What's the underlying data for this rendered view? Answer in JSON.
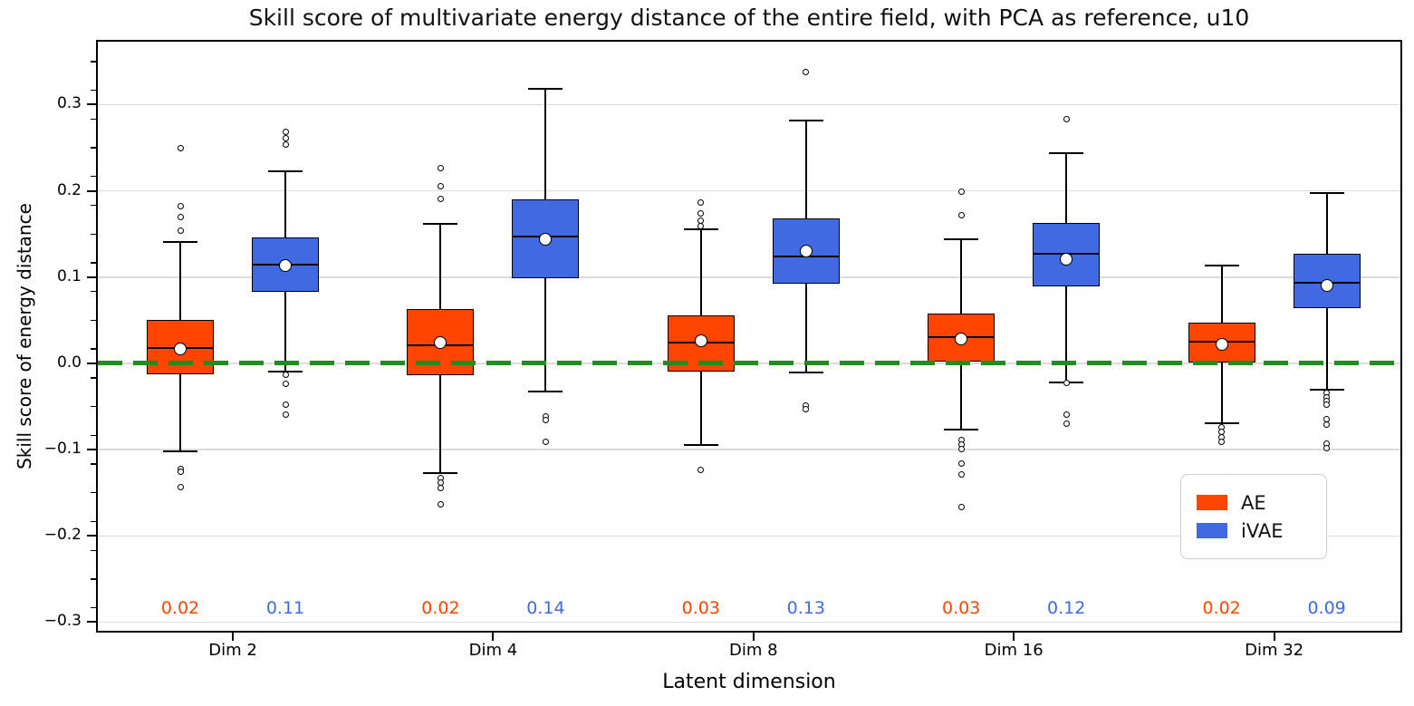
{
  "chart_data": {
    "type": "boxplot",
    "title": "Skill score of multivariate energy distance of the entire field, with PCA as reference, u10",
    "xlabel": "Latent dimension",
    "ylabel": "Skill score of energy distance",
    "ylim": [
      -0.31,
      0.373
    ],
    "yticks": [
      0.3,
      0.2,
      0.1,
      0.0,
      -0.1,
      -0.2,
      -0.3
    ],
    "ytick_labels": [
      "0.3",
      "0.2",
      "0.1",
      "0.0",
      "−0.1",
      "−0.2",
      "−0.3"
    ],
    "categories": [
      "Dim 2",
      "Dim 4",
      "Dim 8",
      "Dim 16",
      "Dim 32"
    ],
    "grid": "horizontal",
    "grid_color": "#dcdcdc",
    "legend_position": "lower right",
    "zero_line": {
      "value": 0.0,
      "color": "#228B22",
      "style": "dashed"
    },
    "mean_label_y": -0.285,
    "series": [
      {
        "name": "AE",
        "color": "#FF4500",
        "mean_labels": [
          "0.02",
          "0.02",
          "0.03",
          "0.03",
          "0.02"
        ],
        "boxes": [
          {
            "whislo": -0.102,
            "q1": -0.013,
            "med": 0.018,
            "mean": 0.017,
            "q3": 0.05,
            "whishi": 0.141,
            "fliers": [
              0.25,
              0.182,
              0.17,
              0.154,
              -0.122,
              -0.126,
              -0.143
            ]
          },
          {
            "whislo": -0.127,
            "q1": -0.014,
            "med": 0.021,
            "mean": 0.024,
            "q3": 0.063,
            "whishi": 0.162,
            "fliers": [
              0.226,
              0.205,
              0.191,
              -0.133,
              -0.138,
              -0.144,
              -0.163
            ]
          },
          {
            "whislo": -0.095,
            "q1": -0.01,
            "med": 0.024,
            "mean": 0.026,
            "q3": 0.056,
            "whishi": 0.155,
            "fliers": [
              0.187,
              0.174,
              0.165,
              0.159,
              -0.123
            ]
          },
          {
            "whislo": -0.077,
            "q1": 0.002,
            "med": 0.03,
            "mean": 0.028,
            "q3": 0.058,
            "whishi": 0.144,
            "fliers": [
              0.199,
              0.172,
              -0.089,
              -0.094,
              -0.099,
              -0.116,
              -0.129,
              -0.167
            ]
          },
          {
            "whislo": -0.069,
            "q1": 0.001,
            "med": 0.025,
            "mean": 0.022,
            "q3": 0.047,
            "whishi": 0.113,
            "fliers": [
              -0.074,
              -0.079,
              -0.086,
              -0.091
            ]
          }
        ]
      },
      {
        "name": "iVAE",
        "color": "#4169E1",
        "mean_labels": [
          "0.11",
          "0.14",
          "0.13",
          "0.12",
          "0.09"
        ],
        "boxes": [
          {
            "whislo": -0.01,
            "q1": 0.083,
            "med": 0.114,
            "mean": 0.113,
            "q3": 0.146,
            "whishi": 0.223,
            "fliers": [
              0.268,
              0.261,
              0.254,
              -0.013,
              -0.024,
              -0.048,
              -0.059
            ]
          },
          {
            "whislo": -0.033,
            "q1": 0.099,
            "med": 0.147,
            "mean": 0.144,
            "q3": 0.19,
            "whishi": 0.318,
            "fliers": [
              -0.061,
              -0.066,
              -0.091
            ]
          },
          {
            "whislo": -0.011,
            "q1": 0.092,
            "med": 0.124,
            "mean": 0.13,
            "q3": 0.168,
            "whishi": 0.282,
            "fliers": [
              0.338,
              -0.049,
              -0.053
            ]
          },
          {
            "whislo": -0.022,
            "q1": 0.089,
            "med": 0.127,
            "mean": 0.121,
            "q3": 0.163,
            "whishi": 0.244,
            "fliers": [
              0.283,
              -0.023,
              -0.059,
              -0.07
            ]
          },
          {
            "whislo": -0.03,
            "q1": 0.064,
            "med": 0.094,
            "mean": 0.09,
            "q3": 0.127,
            "whishi": 0.198,
            "fliers": [
              -0.034,
              -0.039,
              -0.044,
              -0.048,
              -0.065,
              -0.071,
              -0.093,
              -0.098
            ]
          }
        ]
      }
    ]
  }
}
